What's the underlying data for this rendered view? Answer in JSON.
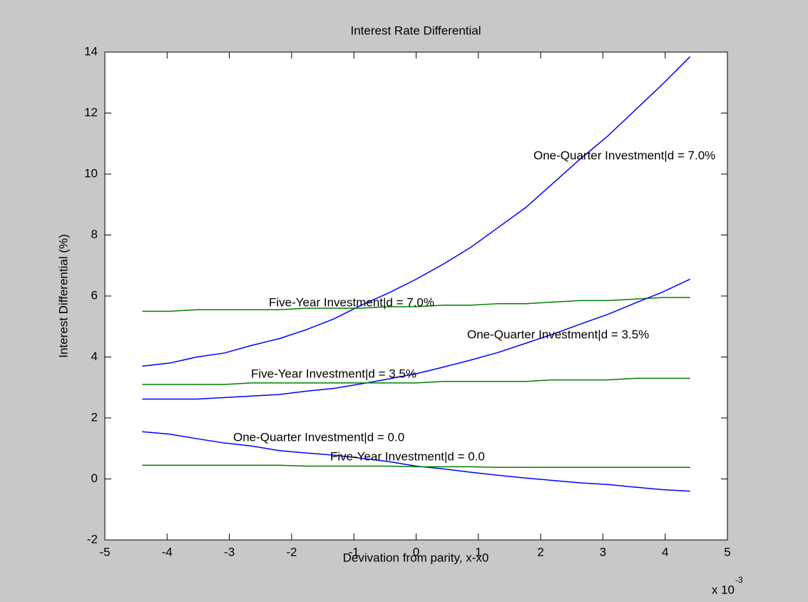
{
  "chart_data": {
    "type": "line",
    "title": "Interest Rate Differential",
    "x_label": "Devivation from parity,  x-x0",
    "y_label": "Interest Differential (%)",
    "x_exponent_label": {
      "base": "x 10",
      "exponent": "-3"
    },
    "x": [
      -4.4,
      -3.96,
      -3.52,
      -3.08,
      -2.64,
      -2.2,
      -1.76,
      -1.32,
      -0.88,
      -0.44,
      0,
      0.44,
      0.88,
      1.32,
      1.76,
      2.2,
      2.64,
      3.08,
      3.52,
      3.96,
      4.4
    ],
    "series": [
      {
        "name": "One-Quarter Investment|d = 7.0%",
        "color": "#0000ff",
        "values": [
          3.7,
          3.8,
          4.0,
          4.13,
          4.38,
          4.6,
          4.9,
          5.25,
          5.7,
          6.1,
          6.55,
          7.05,
          7.6,
          8.25,
          8.9,
          9.7,
          10.5,
          11.25,
          12.1,
          12.95,
          13.85
        ]
      },
      {
        "name": "Five-Year Investment|d = 7.0%",
        "color": "#008000",
        "values": [
          5.5,
          5.5,
          5.55,
          5.55,
          5.55,
          5.55,
          5.6,
          5.6,
          5.6,
          5.65,
          5.65,
          5.7,
          5.7,
          5.75,
          5.75,
          5.8,
          5.85,
          5.85,
          5.9,
          5.95,
          5.95
        ]
      },
      {
        "name": "One-Quarter Investment|d = 3.5%",
        "color": "#0000ff",
        "values": [
          2.62,
          2.62,
          2.62,
          2.67,
          2.72,
          2.77,
          2.88,
          2.97,
          3.12,
          3.28,
          3.45,
          3.67,
          3.9,
          4.15,
          4.45,
          4.75,
          5.08,
          5.4,
          5.77,
          6.13,
          6.55
        ]
      },
      {
        "name": "Five-Year Investment|d = 3.5%",
        "color": "#008000",
        "values": [
          3.1,
          3.1,
          3.1,
          3.1,
          3.15,
          3.15,
          3.15,
          3.15,
          3.15,
          3.15,
          3.15,
          3.2,
          3.2,
          3.2,
          3.2,
          3.25,
          3.25,
          3.25,
          3.3,
          3.3,
          3.3
        ]
      },
      {
        "name": "One-Quarter Investment|d = 0.0",
        "color": "#0000ff",
        "values": [
          1.55,
          1.47,
          1.32,
          1.18,
          1.08,
          0.93,
          0.85,
          0.78,
          0.68,
          0.57,
          0.42,
          0.33,
          0.22,
          0.12,
          0.03,
          -0.05,
          -0.13,
          -0.18,
          -0.27,
          -0.35,
          -0.4
        ]
      },
      {
        "name": "Five-Year Investment|d = 0.0",
        "color": "#008000",
        "values": [
          0.45,
          0.45,
          0.45,
          0.45,
          0.45,
          0.45,
          0.42,
          0.42,
          0.42,
          0.42,
          0.4,
          0.4,
          0.4,
          0.38,
          0.38,
          0.38,
          0.38,
          0.38,
          0.38,
          0.38,
          0.38
        ]
      }
    ],
    "xlim": [
      -5,
      5
    ],
    "xticks": [
      -5,
      -4,
      -3,
      -2,
      -1,
      0,
      1,
      2,
      3,
      4,
      5
    ],
    "ylim": [
      -2,
      14
    ],
    "yticks": [
      -2,
      0,
      2,
      4,
      6,
      8,
      10,
      12,
      14
    ],
    "grid": false
  }
}
